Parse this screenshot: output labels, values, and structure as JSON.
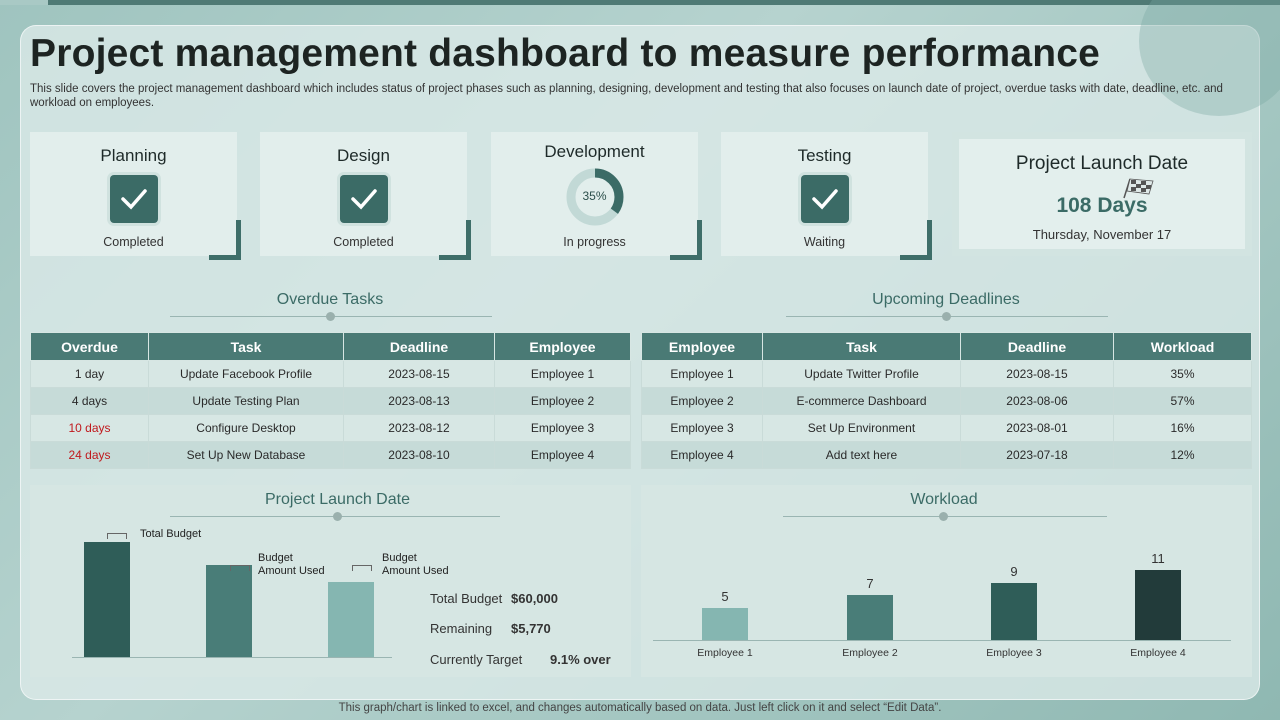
{
  "title": "Project management dashboard to measure performance",
  "subtitle": "This slide covers the project management dashboard which includes status of project phases such as planning, designing, development and testing that also focuses on launch date of project, overdue tasks with date, deadline, etc. and workload on employees.",
  "phases": [
    {
      "title": "Planning",
      "status": "Completed",
      "icon": "check-icon"
    },
    {
      "title": "Design",
      "status": "Completed",
      "icon": "check-icon"
    },
    {
      "title": "Development",
      "status": "In progress",
      "progress_label": "35%",
      "progress": 0.35
    },
    {
      "title": "Testing",
      "status": "Waiting",
      "icon": "check-icon"
    }
  ],
  "launch": {
    "title": "Project Launch Date",
    "days": "108 Days",
    "date": "Thursday,  November  17"
  },
  "overdue": {
    "title": "Overdue Tasks",
    "headers": [
      "Overdue",
      "Task",
      "Deadline",
      "Employee"
    ],
    "rows": [
      [
        "1 day",
        "Update Facebook Profile",
        "2023-08-15",
        "Employee 1"
      ],
      [
        "4 days",
        "Update Testing Plan",
        "2023-08-13",
        "Employee 2"
      ],
      [
        "10 days",
        "Configure Desktop",
        "2023-08-12",
        "Employee 3"
      ],
      [
        "24 days",
        "Set Up New Database",
        "2023-08-10",
        "Employee 4"
      ]
    ]
  },
  "upcoming": {
    "title": "Upcoming Deadlines",
    "headers": [
      "Employee",
      "Task",
      "Deadline",
      "Workload"
    ],
    "rows": [
      [
        "Employee 1",
        "Update Twitter Profile",
        "2023-08-15",
        "35%"
      ],
      [
        "Employee 2",
        "E-commerce Dashboard",
        "2023-08-06",
        "57%"
      ],
      [
        "Employee 3",
        "Set Up Environment",
        "2023-08-01",
        "16%"
      ],
      [
        "Employee 4",
        "Add text here",
        "2023-07-18",
        "12%"
      ]
    ]
  },
  "budget": {
    "title": "Project Launch Date",
    "labels": {
      "total": "Total Budget",
      "used1": "Budget\nAmount Used",
      "used2": "Budget\nAmount Used"
    },
    "summary": [
      {
        "label": "Total Budget",
        "value": "$60,000"
      },
      {
        "label": "Remaining",
        "value": "$5,770"
      },
      {
        "label": "Currently Target",
        "value": "9.1%  over"
      }
    ]
  },
  "workload": {
    "title": "Workload"
  },
  "footer": "This graph/chart is linked to excel,  and changes automatically based on data. Just left click on it and select “Edit Data”.",
  "colors": {
    "accent": "#3b6b66",
    "header": "#4a7a75",
    "overdue_red": "#c0191d"
  },
  "chart_data": [
    {
      "type": "bar",
      "title": "Project Launch Date",
      "categories": [
        "Total Budget",
        "Budget Amount Used",
        "Budget Amount Used"
      ],
      "values": [
        60000,
        48000,
        39000
      ],
      "colors": [
        "#2f5d58",
        "#497d78",
        "#85b6b1"
      ]
    },
    {
      "type": "bar",
      "title": "Workload",
      "categories": [
        "Employee 1",
        "Employee 2",
        "Employee 3",
        "Employee 4"
      ],
      "values": [
        5,
        7,
        9,
        11
      ],
      "colors": [
        "#85b6b1",
        "#497d78",
        "#2f5d58",
        "#223b3a"
      ]
    }
  ]
}
